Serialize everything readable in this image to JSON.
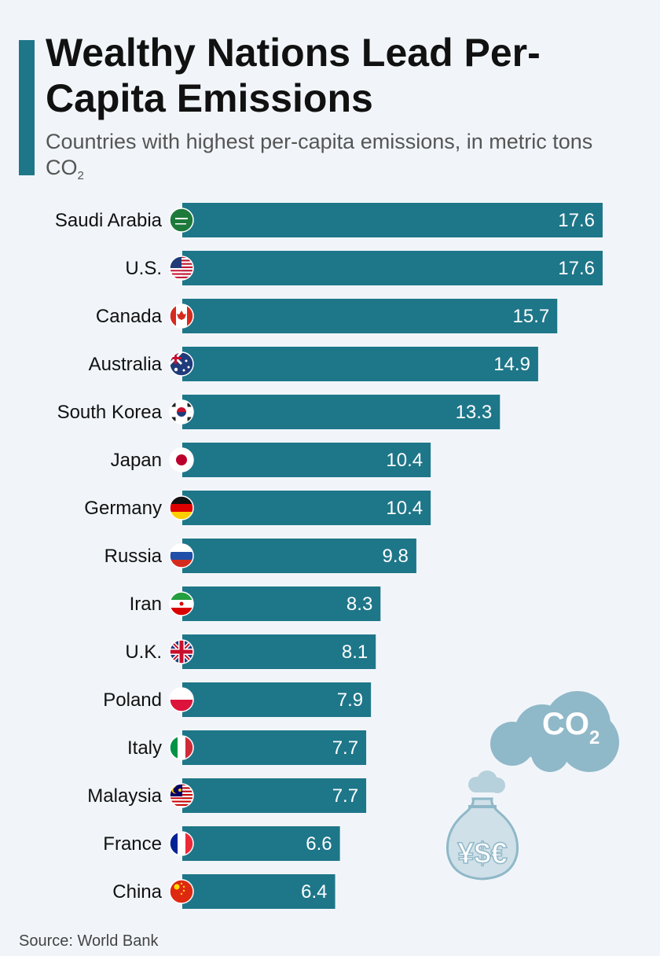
{
  "header": {
    "title": "Wealthy Nations Lead Per-Capita Emissions",
    "subtitle_main": "Countries with highest per-capita emissions, in metric tons CO",
    "subtitle_sub": "2"
  },
  "source": "Source: World Bank",
  "illustration": {
    "cloud_label": "CO",
    "cloud_label_sub": "2",
    "bag_label": "¥$€"
  },
  "colors": {
    "bar": "#1e7689",
    "accent": "#1e7689",
    "background": "#f1f5f9",
    "illustration": "#8fb8c8"
  },
  "chart_data": {
    "type": "bar",
    "orientation": "horizontal",
    "title": "Wealthy Nations Lead Per-Capita Emissions",
    "xlabel": "",
    "ylabel": "",
    "grid": false,
    "xlim": [
      0,
      17.6
    ],
    "categories": [
      "Saudi Arabia",
      "U.S.",
      "Canada",
      "Australia",
      "South Korea",
      "Japan",
      "Germany",
      "Russia",
      "Iran",
      "U.K.",
      "Poland",
      "Italy",
      "Malaysia",
      "France",
      "China"
    ],
    "values": [
      17.6,
      17.6,
      15.7,
      14.9,
      13.3,
      10.4,
      10.4,
      9.8,
      8.3,
      8.1,
      7.9,
      7.7,
      7.7,
      6.6,
      6.4
    ],
    "value_labels": [
      "17.6",
      "17.6",
      "15.7",
      "14.9",
      "13.3",
      "10.4",
      "10.4",
      "9.8",
      "8.3",
      "8.1",
      "7.9",
      "7.7",
      "7.7",
      "6.6",
      "6.4"
    ],
    "flags": [
      "saudi-arabia-flag-icon",
      "us-flag-icon",
      "canada-flag-icon",
      "australia-flag-icon",
      "south-korea-flag-icon",
      "japan-flag-icon",
      "germany-flag-icon",
      "russia-flag-icon",
      "iran-flag-icon",
      "uk-flag-icon",
      "poland-flag-icon",
      "italy-flag-icon",
      "malaysia-flag-icon",
      "france-flag-icon",
      "china-flag-icon"
    ]
  }
}
